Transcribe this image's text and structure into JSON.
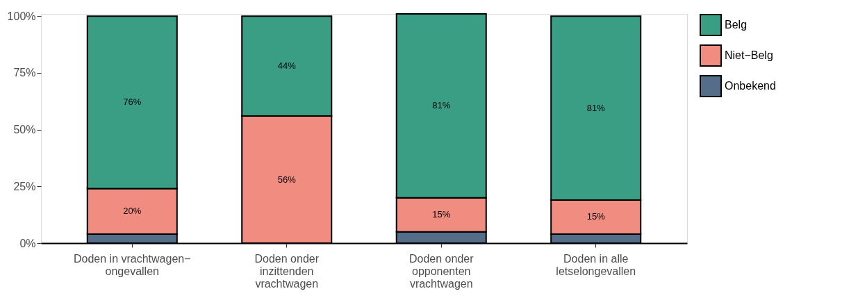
{
  "chart_data": {
    "type": "bar",
    "stacked": true,
    "categories": [
      "Doden in vrachtwagen−\nongevallen",
      "Doden onder\ninzittenden\nvrachtwagen",
      "Doden onder\nopponenten\nvrachtwagen",
      "Doden in alle\nletselongevallen"
    ],
    "series": [
      {
        "name": "Onbekend",
        "color": "#546e8a",
        "values": [
          4,
          0,
          5,
          4
        ],
        "value_labels": [
          null,
          null,
          null,
          null
        ]
      },
      {
        "name": "Niet−Belg",
        "color": "#f08c80",
        "values": [
          20,
          56,
          15,
          15
        ],
        "value_labels": [
          "20%",
          "56%",
          "15%",
          "15%"
        ]
      },
      {
        "name": "Belg",
        "color": "#3a9e85",
        "values": [
          76,
          44,
          81,
          81
        ],
        "value_labels": [
          "76%",
          "44%",
          "81%",
          "81%"
        ]
      }
    ],
    "ylim": [
      0,
      101
    ],
    "yticks": [
      {
        "value": 0,
        "label": "0%"
      },
      {
        "value": 25,
        "label": "25%"
      },
      {
        "value": 50,
        "label": "50%"
      },
      {
        "value": 75,
        "label": "75%"
      },
      {
        "value": 100,
        "label": "100%"
      }
    ],
    "grid": false,
    "legend": "right"
  }
}
